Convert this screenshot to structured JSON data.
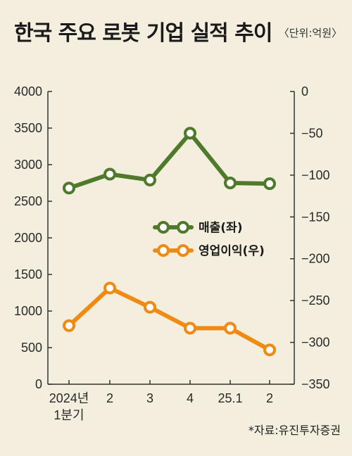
{
  "header": {
    "title": "한국 주요 로봇 기업 실적 추이",
    "unit": "〈단위:억원〉"
  },
  "footer": {
    "source": "*자료:유진투자증권"
  },
  "chart_data": {
    "type": "line",
    "title": "한국 주요 로봇 기업 실적 추이",
    "categories": [
      [
        "2024년",
        "1분기"
      ],
      [
        "2"
      ],
      [
        "3"
      ],
      [
        "4"
      ],
      [
        "25.1"
      ],
      [
        "2"
      ]
    ],
    "left_axis": {
      "min": 0,
      "max": 4000,
      "ticks": [
        0,
        500,
        1000,
        1500,
        2000,
        2500,
        3000,
        3500,
        4000
      ]
    },
    "right_axis": {
      "min": -350,
      "max": 0,
      "ticks": [
        0,
        -50,
        -100,
        -150,
        -200,
        -250,
        -300,
        -350
      ],
      "tick_labels": [
        "0",
        "−50",
        "−100",
        "−150",
        "−200",
        "−250",
        "−300",
        "−350"
      ]
    },
    "grid": false,
    "legend": "center",
    "series": [
      {
        "name": "매출(좌)",
        "axis": "left",
        "color": "#4e7a2a",
        "values": [
          2680,
          2870,
          2790,
          3430,
          2750,
          2740
        ]
      },
      {
        "name": "영업이익(우)",
        "axis": "right",
        "color": "#ef8a12",
        "values": [
          -280,
          -235,
          -258,
          -283,
          -283,
          -309
        ]
      }
    ]
  }
}
